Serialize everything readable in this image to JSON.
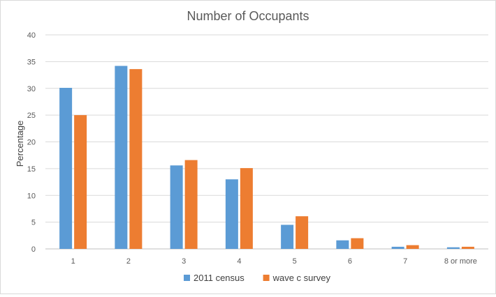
{
  "chart_data": {
    "type": "bar",
    "title": "Number of Occupants",
    "xlabel": "",
    "ylabel": "Percentage",
    "ylim": [
      0,
      40
    ],
    "yticks": [
      0,
      5,
      10,
      15,
      20,
      25,
      30,
      35,
      40
    ],
    "categories": [
      "1",
      "2",
      "3",
      "4",
      "5",
      "6",
      "7",
      "8 or more"
    ],
    "series": [
      {
        "name": "2011 census",
        "color": "#5b9bd5",
        "values": [
          30.1,
          34.2,
          15.6,
          13.0,
          4.5,
          1.6,
          0.4,
          0.3
        ]
      },
      {
        "name": "wave c survey",
        "color": "#ed7d31",
        "values": [
          25.0,
          33.6,
          16.6,
          15.1,
          6.1,
          2.0,
          0.7,
          0.4
        ]
      }
    ],
    "grid": true,
    "legend": "bottom"
  }
}
